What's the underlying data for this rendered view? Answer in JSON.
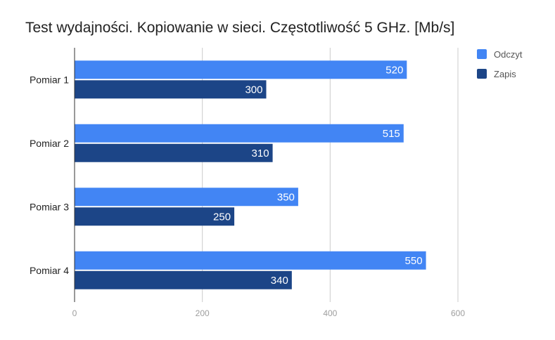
{
  "chart_data": {
    "type": "bar",
    "orientation": "horizontal",
    "title": "Test wydajności. Kopiowanie w sieci. Częstotliwość 5 GHz. [Mb/s]",
    "categories": [
      "Pomiar 1",
      "Pomiar 2",
      "Pomiar 3",
      "Pomiar 4"
    ],
    "series": [
      {
        "name": "Odczyt",
        "values": [
          520,
          515,
          350,
          550
        ],
        "color": "#4285f4"
      },
      {
        "name": "Zapis",
        "values": [
          300,
          310,
          250,
          340
        ],
        "color": "#1c4587"
      }
    ],
    "xlim": [
      0,
      600
    ],
    "x_ticks": [
      "0",
      "200",
      "400",
      "600"
    ],
    "grid": true,
    "legend": "top-right",
    "data_labels": true
  }
}
